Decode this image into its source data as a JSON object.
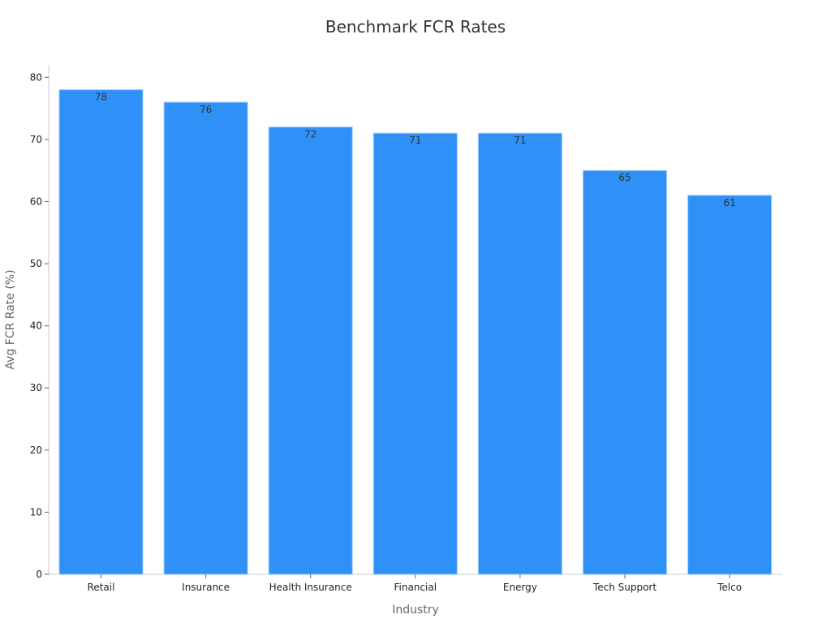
{
  "chart_data": {
    "type": "bar",
    "title": "Benchmark FCR Rates",
    "xlabel": "Industry",
    "ylabel": "Avg FCR Rate (%)",
    "categories": [
      "Retail",
      "Insurance",
      "Health Insurance",
      "Financial",
      "Energy",
      "Tech Support",
      "Telco"
    ],
    "values": [
      78,
      76,
      72,
      71,
      71,
      65,
      61
    ],
    "data_labels": [
      "78",
      "76",
      "72",
      "71",
      "71",
      "65",
      "61"
    ],
    "ylim": [
      0,
      82
    ],
    "yticks": [
      0,
      10,
      20,
      30,
      40,
      50,
      60,
      70,
      80
    ],
    "grid": false,
    "bar_color": "#2f91f8",
    "bar_edge_color": "#9ecbf7"
  }
}
